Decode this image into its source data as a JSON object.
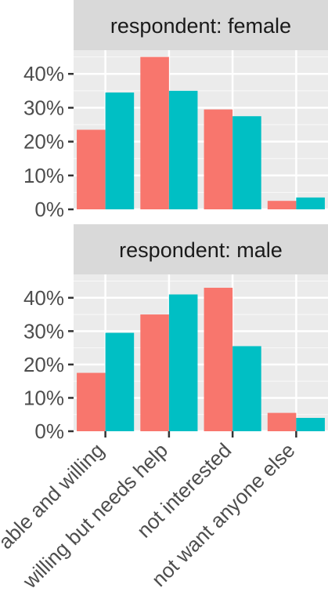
{
  "chart_data": {
    "type": "bar",
    "facet_variable_label": "respondent",
    "categories": [
      "able and willing",
      "willing but needs help",
      "not interested",
      "not want anyone else"
    ],
    "ylim": [
      0,
      0.47
    ],
    "y_ticks": [
      0,
      0.1,
      0.2,
      0.3,
      0.4
    ],
    "y_tick_labels": [
      "0%",
      "10%",
      "20%",
      "30%",
      "40%"
    ],
    "grid": true,
    "legend": "none",
    "colors": {
      "series_1": "#F8766D",
      "series_2": "#00BFC4",
      "panel_bg": "#EBEBEB",
      "strip_bg": "#D9D9D9",
      "grid_major": "#FFFFFF",
      "text": "#4D4D4D",
      "strip_text": "#1A1A1A"
    },
    "facets": [
      {
        "strip": "respondent: female",
        "series": [
          {
            "values": [
              0.235,
              0.45,
              0.295,
              0.025
            ]
          },
          {
            "values": [
              0.345,
              0.35,
              0.275,
              0.035
            ]
          }
        ]
      },
      {
        "strip": "respondent: male",
        "series": [
          {
            "values": [
              0.175,
              0.35,
              0.43,
              0.055
            ]
          },
          {
            "values": [
              0.295,
              0.41,
              0.255,
              0.04
            ]
          }
        ]
      }
    ]
  }
}
